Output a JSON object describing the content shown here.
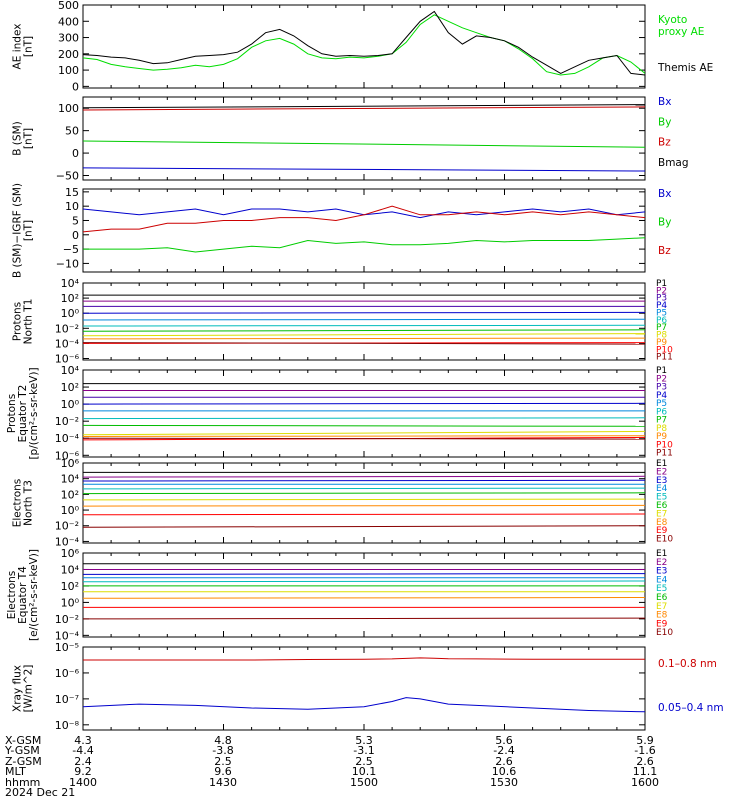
{
  "chart_data": [
    {
      "type": "line",
      "ylabel": [
        "AE index",
        "[nT]"
      ],
      "yscale": "linear",
      "ylim": [
        -10,
        500
      ],
      "ticks": [
        "500",
        "400",
        "300",
        "200",
        "100",
        "0"
      ],
      "tick_values": [
        500,
        400,
        300,
        200,
        100,
        0
      ],
      "x": [
        0,
        5,
        10,
        15,
        20,
        25,
        30,
        35,
        40,
        45,
        50,
        55,
        60,
        65,
        70,
        75,
        80,
        85,
        90,
        95,
        100,
        105,
        110,
        115,
        120,
        125,
        130,
        135,
        140,
        145,
        150,
        155,
        160,
        165,
        170,
        175,
        180,
        185,
        190,
        195,
        200
      ],
      "series": [
        {
          "name": "Kyoto proxy AE",
          "color": "#00dd00",
          "values": [
            175,
            165,
            135,
            120,
            110,
            100,
            105,
            115,
            130,
            120,
            135,
            170,
            240,
            280,
            295,
            260,
            200,
            175,
            170,
            180,
            175,
            185,
            200,
            270,
            380,
            440,
            400,
            360,
            330,
            300,
            280,
            230,
            170,
            90,
            70,
            80,
            120,
            175,
            190,
            150,
            80
          ]
        },
        {
          "name": "Themis AE",
          "color": "#000000",
          "values": [
            195,
            190,
            180,
            175,
            160,
            140,
            145,
            165,
            185,
            190,
            195,
            210,
            260,
            330,
            350,
            310,
            250,
            200,
            185,
            190,
            185,
            190,
            200,
            300,
            400,
            460,
            330,
            260,
            310,
            300,
            280,
            240,
            180,
            130,
            80,
            120,
            160,
            175,
            190,
            80,
            70
          ]
        }
      ]
    },
    {
      "type": "line",
      "ylabel": [
        "B (SM)",
        "[nT]"
      ],
      "yscale": "linear",
      "ylim": [
        -60,
        125
      ],
      "ticks": [
        "100",
        "50",
        "0",
        "−50"
      ],
      "tick_values": [
        100,
        50,
        0,
        -50
      ],
      "x": [
        0,
        200
      ],
      "series": [
        {
          "name": "Bx",
          "color": "#0000cc",
          "values": [
            -33,
            -40
          ]
        },
        {
          "name": "By",
          "color": "#00cc00",
          "values": [
            27,
            13
          ]
        },
        {
          "name": "Bz",
          "color": "#cc0000",
          "values": [
            96,
            103
          ]
        },
        {
          "name": "Bmag",
          "color": "#000000",
          "values": [
            101,
            108
          ]
        }
      ]
    },
    {
      "type": "line",
      "ylabel": [
        "B (SM)−IGRF (SM)",
        "[nT]"
      ],
      "yscale": "linear",
      "ylim": [
        -13,
        16
      ],
      "ticks": [
        "15",
        "10",
        "5",
        "0",
        "−5",
        "−10"
      ],
      "tick_values": [
        15,
        10,
        5,
        0,
        -5,
        -10
      ],
      "x": [
        0,
        10,
        20,
        30,
        40,
        50,
        60,
        70,
        80,
        90,
        100,
        110,
        120,
        130,
        140,
        150,
        160,
        170,
        180,
        190,
        200
      ],
      "series": [
        {
          "name": "Bx",
          "color": "#0000cc",
          "values": [
            9,
            8,
            7,
            8,
            9,
            7,
            9,
            9,
            8,
            9,
            7,
            8,
            6,
            8,
            7,
            8,
            9,
            8,
            9,
            7,
            8
          ]
        },
        {
          "name": "By",
          "color": "#00cc00",
          "values": [
            -5,
            -5,
            -5,
            -4.5,
            -6,
            -5,
            -4,
            -4.5,
            -2,
            -3,
            -2.5,
            -3.5,
            -3.5,
            -3,
            -2,
            -2.5,
            -2,
            -2,
            -2,
            -1.5,
            -1
          ]
        },
        {
          "name": "Bz",
          "color": "#cc0000",
          "values": [
            1,
            2,
            2,
            4,
            4,
            5,
            5,
            6,
            6,
            5,
            7,
            10,
            7,
            7,
            8,
            7,
            8,
            7,
            8,
            7,
            6
          ]
        }
      ]
    },
    {
      "type": "line",
      "ylabel": [
        "Protons",
        "North T1"
      ],
      "yscale": "log",
      "ylim": [
        -6.2,
        4
      ],
      "ticks": [
        "10⁴",
        "10²",
        "10⁰",
        "10⁻²",
        "10⁻⁴",
        "10⁻⁶"
      ],
      "tick_values": [
        4,
        2,
        0,
        -2,
        -4,
        -6
      ],
      "x": [
        0,
        200
      ],
      "series": [
        {
          "name": "P1",
          "color": "#000000",
          "values": [
            2.4,
            2.4
          ]
        },
        {
          "name": "P2",
          "color": "#880088",
          "values": [
            1.6,
            1.6
          ]
        },
        {
          "name": "P3",
          "color": "#4400aa",
          "values": [
            0.9,
            0.9
          ]
        },
        {
          "name": "P4",
          "color": "#0000cc",
          "values": [
            0.0,
            0.1
          ]
        },
        {
          "name": "P5",
          "color": "#0088dd",
          "values": [
            -0.9,
            -0.8
          ]
        },
        {
          "name": "P6",
          "color": "#00bbbb",
          "values": [
            -1.7,
            -1.6
          ]
        },
        {
          "name": "P7",
          "color": "#00bb00",
          "values": [
            -2.4,
            -2.2
          ]
        },
        {
          "name": "P8",
          "color": "#dddd00",
          "values": [
            -3.0,
            -2.7
          ]
        },
        {
          "name": "P9",
          "color": "#ff8800",
          "values": [
            -3.4,
            -3.3
          ]
        },
        {
          "name": "P10",
          "color": "#ff0000",
          "values": [
            -4.0,
            -3.9
          ]
        },
        {
          "name": "P11",
          "color": "#880000",
          "values": [
            -3.9,
            -4.1
          ]
        }
      ]
    },
    {
      "type": "line",
      "ylabel": [
        "Protons",
        "Equator T2",
        "[p/(cm²-s-sr-keV)]"
      ],
      "yscale": "log",
      "ylim": [
        -6.2,
        4
      ],
      "ticks": [
        "10⁴",
        "10²",
        "10⁰",
        "10⁻²",
        "10⁻⁴",
        "10⁻⁶"
      ],
      "tick_values": [
        4,
        2,
        0,
        -2,
        -4,
        -6
      ],
      "x": [
        0,
        200
      ],
      "series": [
        {
          "name": "P1",
          "color": "#000000",
          "values": [
            2.4,
            2.4
          ]
        },
        {
          "name": "P2",
          "color": "#880088",
          "values": [
            1.6,
            1.6
          ]
        },
        {
          "name": "P3",
          "color": "#4400aa",
          "values": [
            0.8,
            0.8
          ]
        },
        {
          "name": "P4",
          "color": "#0000cc",
          "values": [
            0.0,
            0.1
          ]
        },
        {
          "name": "P5",
          "color": "#0088dd",
          "values": [
            -0.8,
            -0.8
          ]
        },
        {
          "name": "P6",
          "color": "#00bbbb",
          "values": [
            -1.7,
            -1.6
          ]
        },
        {
          "name": "P7",
          "color": "#00bb00",
          "values": [
            -2.5,
            -2.6
          ]
        },
        {
          "name": "P8",
          "color": "#dddd00",
          "values": [
            -3.6,
            -3.2
          ]
        },
        {
          "name": "P9",
          "color": "#ff8800",
          "values": [
            -3.8,
            -3.7
          ]
        },
        {
          "name": "P10",
          "color": "#ff0000",
          "values": [
            -4.2,
            -3.9
          ]
        },
        {
          "name": "P11",
          "color": "#880000",
          "values": [
            -4.0,
            -4.1
          ]
        }
      ]
    },
    {
      "type": "line",
      "ylabel": [
        "Electrons",
        "North T3"
      ],
      "yscale": "log",
      "ylim": [
        -4.2,
        6
      ],
      "ticks": [
        "10⁶",
        "10⁴",
        "10²",
        "10⁰",
        "10⁻²",
        "10⁻⁴"
      ],
      "tick_values": [
        6,
        4,
        2,
        0,
        -2,
        -4
      ],
      "x": [
        0,
        200
      ],
      "series": [
        {
          "name": "E1",
          "color": "#000000",
          "values": [
            4.8,
            4.8
          ]
        },
        {
          "name": "E2",
          "color": "#880088",
          "values": [
            4.2,
            4.3
          ]
        },
        {
          "name": "E3",
          "color": "#0000cc",
          "values": [
            3.7,
            3.8
          ]
        },
        {
          "name": "E4",
          "color": "#0088dd",
          "values": [
            3.3,
            3.3
          ]
        },
        {
          "name": "E5",
          "color": "#00bbbb",
          "values": [
            2.7,
            2.8
          ]
        },
        {
          "name": "E6",
          "color": "#00bb00",
          "values": [
            2.1,
            2.2
          ]
        },
        {
          "name": "E7",
          "color": "#dddd00",
          "values": [
            1.3,
            1.4
          ]
        },
        {
          "name": "E8",
          "color": "#ff8800",
          "values": [
            0.5,
            0.6
          ]
        },
        {
          "name": "E9",
          "color": "#ff0000",
          "values": [
            -0.6,
            -0.5
          ]
        },
        {
          "name": "E10",
          "color": "#880000",
          "values": [
            -2.2,
            -2.0
          ]
        }
      ]
    },
    {
      "type": "line",
      "ylabel": [
        "Electrons",
        "Equator T4",
        "[e/(cm²-s-sr-keV)]"
      ],
      "yscale": "log",
      "ylim": [
        -4.2,
        6
      ],
      "ticks": [
        "10⁶",
        "10⁴",
        "10²",
        "10⁰",
        "10⁻²",
        "10⁻⁴"
      ],
      "tick_values": [
        6,
        4,
        2,
        0,
        -2,
        -4
      ],
      "x": [
        0,
        200
      ],
      "series": [
        {
          "name": "E1",
          "color": "#000000",
          "values": [
            4.7,
            4.7
          ]
        },
        {
          "name": "E2",
          "color": "#880088",
          "values": [
            4.0,
            4.0
          ]
        },
        {
          "name": "E3",
          "color": "#0000cc",
          "values": [
            3.4,
            3.5
          ]
        },
        {
          "name": "E4",
          "color": "#0088dd",
          "values": [
            3.0,
            3.0
          ]
        },
        {
          "name": "E5",
          "color": "#00bbbb",
          "values": [
            2.5,
            2.6
          ]
        },
        {
          "name": "E6",
          "color": "#00bb00",
          "values": [
            2.0,
            2.0
          ]
        },
        {
          "name": "E7",
          "color": "#dddd00",
          "values": [
            1.3,
            1.3
          ]
        },
        {
          "name": "E8",
          "color": "#ff8800",
          "values": [
            0.5,
            0.6
          ]
        },
        {
          "name": "E9",
          "color": "#ff0000",
          "values": [
            -0.6,
            -0.6
          ]
        },
        {
          "name": "E10",
          "color": "#880000",
          "values": [
            -2.0,
            -1.9
          ]
        }
      ]
    },
    {
      "type": "line",
      "ylabel": [
        "Xray flux",
        "[W/m^2]"
      ],
      "yscale": "log",
      "ylim": [
        -8.2,
        -5.0
      ],
      "ticks": [
        "10⁻⁵",
        "10⁻⁶",
        "10⁻⁷",
        "10⁻⁸"
      ],
      "tick_values": [
        -5,
        -6,
        -7,
        -8
      ],
      "x": [
        0,
        20,
        40,
        60,
        80,
        100,
        110,
        115,
        120,
        125,
        130,
        140,
        160,
        180,
        200
      ],
      "series": [
        {
          "name": "0.1–0.8 nm",
          "color": "#cc0000",
          "values": [
            -5.5,
            -5.5,
            -5.5,
            -5.5,
            -5.48,
            -5.47,
            -5.46,
            -5.44,
            -5.42,
            -5.43,
            -5.45,
            -5.46,
            -5.47,
            -5.47,
            -5.47
          ]
        },
        {
          "name": "0.05–0.4 nm",
          "color": "#0000cc",
          "values": [
            -7.3,
            -7.2,
            -7.25,
            -7.35,
            -7.4,
            -7.3,
            -7.1,
            -6.95,
            -7.0,
            -7.1,
            -7.2,
            -7.25,
            -7.35,
            -7.45,
            -7.5
          ]
        }
      ]
    }
  ],
  "legends": [
    [
      {
        "label": "Kyoto\nproxy AE",
        "color": "#00dd00"
      },
      {
        "label": "Themis AE",
        "color": "#000000"
      }
    ],
    [
      {
        "label": "Bx",
        "color": "#0000cc"
      },
      {
        "label": "By",
        "color": "#00cc00"
      },
      {
        "label": "Bz",
        "color": "#cc0000"
      },
      {
        "label": "Bmag",
        "color": "#000000"
      }
    ],
    [
      {
        "label": "Bx",
        "color": "#0000cc"
      },
      {
        "label": "By",
        "color": "#00cc00"
      },
      {
        "label": "Bz",
        "color": "#cc0000"
      }
    ],
    [
      {
        "label": "P1",
        "color": "#000000"
      },
      {
        "label": "P2",
        "color": "#880088"
      },
      {
        "label": "P3",
        "color": "#4400aa"
      },
      {
        "label": "P4",
        "color": "#0000cc"
      },
      {
        "label": "P5",
        "color": "#0088dd"
      },
      {
        "label": "P6",
        "color": "#00bbbb"
      },
      {
        "label": "P7",
        "color": "#00bb00"
      },
      {
        "label": "P8",
        "color": "#dddd00"
      },
      {
        "label": "P9",
        "color": "#ff8800"
      },
      {
        "label": "P10",
        "color": "#ff0000"
      },
      {
        "label": "P11",
        "color": "#880000"
      }
    ],
    [
      {
        "label": "P1",
        "color": "#000000"
      },
      {
        "label": "P2",
        "color": "#880088"
      },
      {
        "label": "P3",
        "color": "#4400aa"
      },
      {
        "label": "P4",
        "color": "#0000cc"
      },
      {
        "label": "P5",
        "color": "#0088dd"
      },
      {
        "label": "P6",
        "color": "#00bbbb"
      },
      {
        "label": "P7",
        "color": "#00bb00"
      },
      {
        "label": "P8",
        "color": "#dddd00"
      },
      {
        "label": "P9",
        "color": "#ff8800"
      },
      {
        "label": "P10",
        "color": "#ff0000"
      },
      {
        "label": "P11",
        "color": "#880000"
      }
    ],
    [
      {
        "label": "E1",
        "color": "#000000"
      },
      {
        "label": "E2",
        "color": "#880088"
      },
      {
        "label": "E3",
        "color": "#0000cc"
      },
      {
        "label": "E4",
        "color": "#0088dd"
      },
      {
        "label": "E5",
        "color": "#00bbbb"
      },
      {
        "label": "E6",
        "color": "#00bb00"
      },
      {
        "label": "E7",
        "color": "#dddd00"
      },
      {
        "label": "E8",
        "color": "#ff8800"
      },
      {
        "label": "E9",
        "color": "#ff0000"
      },
      {
        "label": "E10",
        "color": "#880000"
      }
    ],
    [
      {
        "label": "E1",
        "color": "#000000"
      },
      {
        "label": "E2",
        "color": "#880088"
      },
      {
        "label": "E3",
        "color": "#0000cc"
      },
      {
        "label": "E4",
        "color": "#0088dd"
      },
      {
        "label": "E5",
        "color": "#00bbbb"
      },
      {
        "label": "E6",
        "color": "#00bb00"
      },
      {
        "label": "E7",
        "color": "#dddd00"
      },
      {
        "label": "E8",
        "color": "#ff8800"
      },
      {
        "label": "E9",
        "color": "#ff0000"
      },
      {
        "label": "E10",
        "color": "#880000"
      }
    ],
    [
      {
        "label": "0.1–0.8 nm",
        "color": "#cc0000"
      },
      {
        "label": "0.05–0.4 nm",
        "color": "#0000cc"
      }
    ]
  ],
  "footer": {
    "row_labels": [
      "X-GSM",
      "Y-GSM",
      "Z-GSM",
      "MLT",
      "hhmm",
      "2024 Dec 21"
    ],
    "columns": [
      [
        "4.3",
        "-4.4",
        "2.4",
        "9.2",
        "1400"
      ],
      [
        "4.8",
        "-3.8",
        "2.5",
        "9.6",
        "1430"
      ],
      [
        "5.3",
        "-3.1",
        "2.5",
        "10.1",
        "1500"
      ],
      [
        "5.6",
        "-2.4",
        "2.6",
        "10.6",
        "1530"
      ],
      [
        "5.9",
        "-1.6",
        "2.6",
        "11.1",
        "1600"
      ]
    ]
  }
}
